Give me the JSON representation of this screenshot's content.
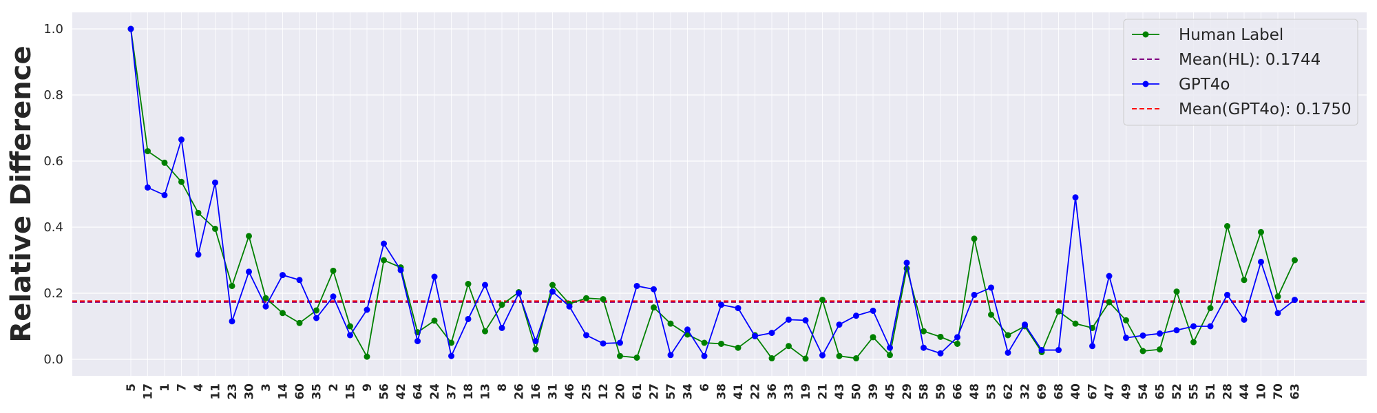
{
  "chart_data": {
    "type": "line",
    "ylabel": "Relative Difference",
    "xlabel": "",
    "title": "",
    "ylim": [
      -0.05,
      1.05
    ],
    "yticks": [
      "0.0",
      "0.2",
      "0.4",
      "0.6",
      "0.8",
      "1.0"
    ],
    "grid": true,
    "legend_position": "top-right",
    "categories": [
      "5",
      "17",
      "1",
      "7",
      "4",
      "11",
      "23",
      "30",
      "3",
      "14",
      "60",
      "35",
      "2",
      "15",
      "9",
      "56",
      "42",
      "64",
      "24",
      "37",
      "18",
      "13",
      "8",
      "26",
      "16",
      "31",
      "46",
      "25",
      "12",
      "20",
      "61",
      "27",
      "57",
      "34",
      "6",
      "38",
      "41",
      "22",
      "36",
      "33",
      "19",
      "21",
      "43",
      "50",
      "39",
      "45",
      "29",
      "58",
      "59",
      "66",
      "48",
      "53",
      "62",
      "32",
      "69",
      "68",
      "40",
      "67",
      "47",
      "49",
      "54",
      "65",
      "52",
      "55",
      "51",
      "28",
      "44",
      "10",
      "70",
      "63"
    ],
    "series": [
      {
        "name": "Human Label",
        "color": "#008000",
        "values": [
          1.0,
          0.63,
          0.595,
          0.537,
          0.443,
          0.395,
          0.222,
          0.373,
          0.185,
          0.14,
          0.11,
          0.148,
          0.268,
          0.1,
          0.008,
          0.3,
          0.278,
          0.082,
          0.117,
          0.05,
          0.228,
          0.085,
          0.165,
          0.203,
          0.03,
          0.225,
          0.168,
          0.185,
          0.182,
          0.01,
          0.005,
          0.157,
          0.108,
          0.075,
          0.05,
          0.047,
          0.035,
          0.073,
          0.003,
          0.04,
          0.002,
          0.18,
          0.01,
          0.003,
          0.067,
          0.013,
          0.275,
          0.085,
          0.068,
          0.047,
          0.365,
          0.135,
          0.073,
          0.1,
          0.022,
          0.145,
          0.108,
          0.095,
          0.173,
          0.118,
          0.025,
          0.03,
          0.205,
          0.052,
          0.155,
          0.403,
          0.24,
          0.385,
          0.19,
          0.3
        ]
      },
      {
        "name": "GPT4o",
        "color": "#0000ff",
        "values": [
          1.0,
          0.52,
          0.497,
          0.665,
          0.317,
          0.535,
          0.115,
          0.265,
          0.16,
          0.255,
          0.24,
          0.125,
          0.19,
          0.073,
          0.15,
          0.35,
          0.27,
          0.055,
          0.25,
          0.01,
          0.122,
          0.225,
          0.095,
          0.2,
          0.055,
          0.205,
          0.16,
          0.073,
          0.048,
          0.05,
          0.222,
          0.212,
          0.013,
          0.09,
          0.01,
          0.165,
          0.155,
          0.07,
          0.08,
          0.12,
          0.118,
          0.012,
          0.105,
          0.132,
          0.147,
          0.035,
          0.292,
          0.035,
          0.018,
          0.067,
          0.195,
          0.217,
          0.02,
          0.105,
          0.028,
          0.028,
          0.49,
          0.04,
          0.252,
          0.065,
          0.072,
          0.078,
          0.088,
          0.1,
          0.1,
          0.195,
          0.12,
          0.295,
          0.14,
          0.18
        ]
      }
    ],
    "mean_lines": [
      {
        "name": "Mean(HL): 0.1744",
        "value": 0.1744,
        "color": "#800080"
      },
      {
        "name": "Mean(GPT4o): 0.1750",
        "value": 0.175,
        "color": "#ff0000"
      }
    ],
    "legend": [
      "Human Label",
      "Mean(HL): 0.1744",
      "GPT4o",
      "Mean(GPT4o): 0.1750"
    ]
  }
}
